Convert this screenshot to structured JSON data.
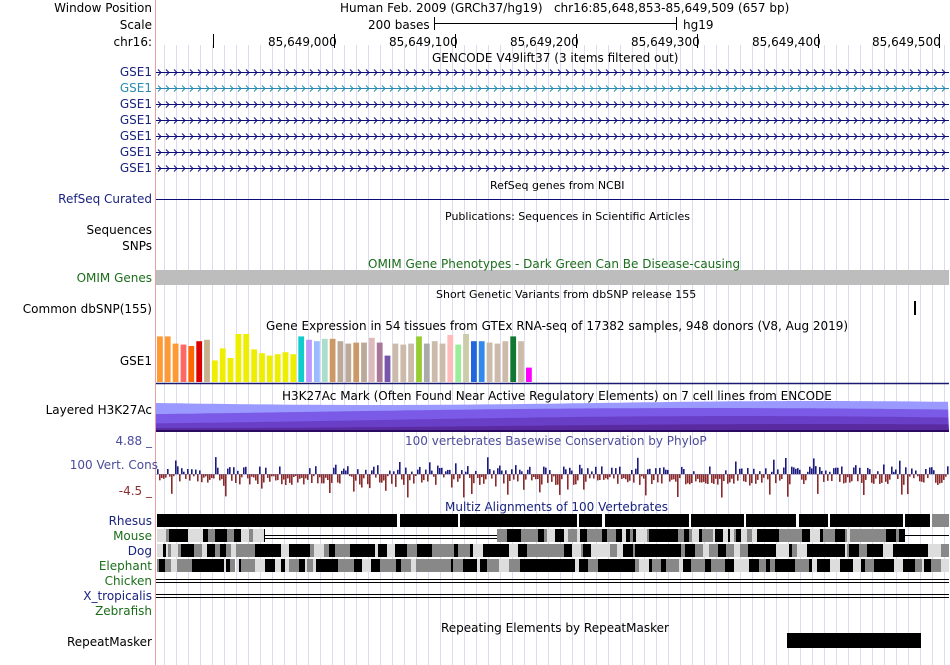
{
  "header": {
    "window_position_label": "Window Position",
    "window_position_value": "Human Feb. 2009 (GRCh37/hg19)   chr16:85,648,853-85,649,509 (657 bp)",
    "scale_label": "Scale",
    "scale_text": "200 bases",
    "scale_assembly": "hg19",
    "chrom_label": "chr16:",
    "ruler_ticks": [
      "85,649,000",
      "85,649,100",
      "85,649,200",
      "85,649,300",
      "85,649,400",
      "85,649,500"
    ]
  },
  "gencode": {
    "title": "GENCODE V49lift37 (3 items filtered out)",
    "items": [
      "GSE1",
      "GSE1",
      "GSE1",
      "GSE1",
      "GSE1",
      "GSE1",
      "GSE1"
    ],
    "colors": [
      "#0c0c78",
      "#2a8ab2",
      "#0c0c78",
      "#0c0c78",
      "#0c0c78",
      "#0c0c78",
      "#0c0c78"
    ]
  },
  "refseq": {
    "title": "RefSeq genes from NCBI",
    "label": "RefSeq Curated"
  },
  "publications": {
    "title": "Publications: Sequences in Scientific Articles",
    "label1": "Sequences",
    "label2": "SNPs"
  },
  "omim": {
    "title": "OMIM Gene Phenotypes - Dark Green Can Be Disease-causing",
    "label": "OMIM Genes"
  },
  "dbsnp": {
    "title": "Short Genetic Variants from dbSNP release 155",
    "label": "Common dbSNP(155)"
  },
  "gtex": {
    "title": "Gene Expression in 54 tissues from GTEx RNA-seq of 17382 samples, 948 donors (V8, Aug 2019)",
    "label": "GSE1",
    "bars": [
      {
        "v": 0.95,
        "c": "#ff9933"
      },
      {
        "v": 0.95,
        "c": "#ff9933"
      },
      {
        "v": 0.8,
        "c": "#ff9933"
      },
      {
        "v": 0.78,
        "c": "#ff6666"
      },
      {
        "v": 0.75,
        "c": "#ff6600"
      },
      {
        "v": 0.85,
        "c": "#dd0000"
      },
      {
        "v": 0.88,
        "c": "#c7b08c"
      },
      {
        "v": 0.45,
        "c": "#eeee00"
      },
      {
        "v": 0.7,
        "c": "#eeee00"
      },
      {
        "v": 0.5,
        "c": "#eeee00"
      },
      {
        "v": 1.0,
        "c": "#eeee00"
      },
      {
        "v": 1.0,
        "c": "#eeee00"
      },
      {
        "v": 0.68,
        "c": "#eeee00"
      },
      {
        "v": 0.6,
        "c": "#eeee00"
      },
      {
        "v": 0.55,
        "c": "#eeee00"
      },
      {
        "v": 0.58,
        "c": "#eeee00"
      },
      {
        "v": 0.62,
        "c": "#eeee00"
      },
      {
        "v": 0.58,
        "c": "#eeee00"
      },
      {
        "v": 0.95,
        "c": "#11cccc"
      },
      {
        "v": 0.88,
        "c": "#bb99ff"
      },
      {
        "v": 0.85,
        "c": "#99bbff"
      },
      {
        "v": 0.9,
        "c": "#aaddcc"
      },
      {
        "v": 0.9,
        "c": "#cc9966"
      },
      {
        "v": 0.85,
        "c": "#bbaa99"
      },
      {
        "v": 0.8,
        "c": "#bbaa99"
      },
      {
        "v": 0.82,
        "c": "#cc9966"
      },
      {
        "v": 0.82,
        "c": "#bbaa99"
      },
      {
        "v": 0.92,
        "c": "#ddbbbb"
      },
      {
        "v": 0.82,
        "c": "#aa7799"
      },
      {
        "v": 0.55,
        "c": "#7755aa"
      },
      {
        "v": 0.8,
        "c": "#ccbbaa"
      },
      {
        "v": 0.78,
        "c": "#ccbbaa"
      },
      {
        "v": 0.8,
        "c": "#ccbbaa"
      },
      {
        "v": 0.95,
        "c": "#99cc33"
      },
      {
        "v": 0.8,
        "c": "#aaaaaa"
      },
      {
        "v": 0.85,
        "c": "#ccbbaa"
      },
      {
        "v": 0.8,
        "c": "#ccbbaa"
      },
      {
        "v": 0.98,
        "c": "#ffbbbb"
      },
      {
        "v": 0.78,
        "c": "#99ee99"
      },
      {
        "v": 1.0,
        "c": "#ccccaa"
      },
      {
        "v": 0.85,
        "c": "#2266dd"
      },
      {
        "v": 0.85,
        "c": "#3388ee"
      },
      {
        "v": 0.82,
        "c": "#ccbbaa"
      },
      {
        "v": 0.8,
        "c": "#ccbbaa"
      },
      {
        "v": 0.85,
        "c": "#ccbbaa"
      },
      {
        "v": 0.95,
        "c": "#117733"
      },
      {
        "v": 0.85,
        "c": "#ccbbaa"
      },
      {
        "v": 0.3,
        "c": "#ff00ff"
      }
    ]
  },
  "h3k27ac": {
    "title": "H3K27Ac Mark (Often Found Near Active Regulatory Elements) on 7 cell lines from ENCODE",
    "label": "Layered H3K27Ac"
  },
  "conservation": {
    "title": "100 vertebrates Basewise Conservation by PhyloP",
    "label": "100 Vert. Cons",
    "ymax": "4.88 _",
    "ymin": "-4.5 _"
  },
  "multiz": {
    "title": "Multiz Alignments of 100 Vertebrates",
    "species": [
      {
        "name": "Rhesus",
        "color": "#0c0c78"
      },
      {
        "name": "Mouse",
        "color": "#1b6d1b"
      },
      {
        "name": "Dog",
        "color": "#0c0c78"
      },
      {
        "name": "Elephant",
        "color": "#1b6d1b"
      },
      {
        "name": "Chicken",
        "color": "#1b6d1b"
      },
      {
        "name": "X_tropicalis",
        "color": "#0c0c78"
      },
      {
        "name": "Zebrafish",
        "color": "#1b6d1b"
      }
    ]
  },
  "repeatmasker": {
    "title": "Repeating Elements by RepeatMasker",
    "label": "RepeatMasker"
  }
}
